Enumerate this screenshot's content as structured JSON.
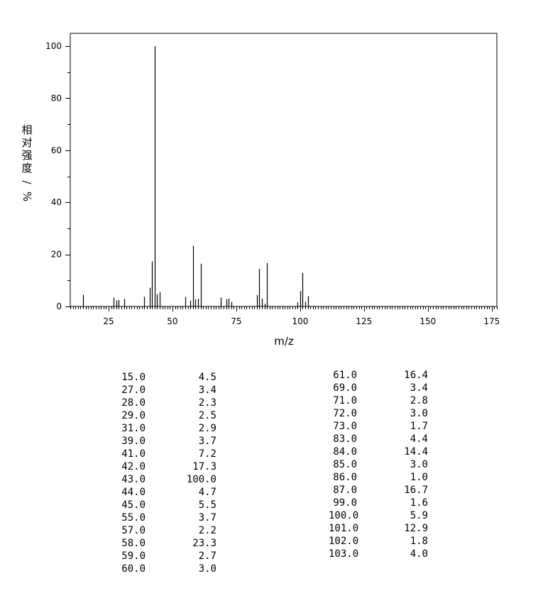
{
  "chart_data": {
    "type": "bar",
    "xlabel": "m/z",
    "ylabel": "相对强度/%",
    "xlim": [
      10,
      177
    ],
    "ylim": [
      0,
      105
    ],
    "x_ticks": [
      25,
      50,
      75,
      100,
      125,
      150,
      175
    ],
    "y_ticks": [
      0,
      20,
      40,
      60,
      80,
      100
    ],
    "peaks": [
      {
        "mz": 15.0,
        "intensity": 4.5
      },
      {
        "mz": 27.0,
        "intensity": 3.4
      },
      {
        "mz": 28.0,
        "intensity": 2.3
      },
      {
        "mz": 29.0,
        "intensity": 2.5
      },
      {
        "mz": 31.0,
        "intensity": 2.9
      },
      {
        "mz": 39.0,
        "intensity": 3.7
      },
      {
        "mz": 41.0,
        "intensity": 7.2
      },
      {
        "mz": 42.0,
        "intensity": 17.3
      },
      {
        "mz": 43.0,
        "intensity": 100.0
      },
      {
        "mz": 44.0,
        "intensity": 4.7
      },
      {
        "mz": 45.0,
        "intensity": 5.5
      },
      {
        "mz": 55.0,
        "intensity": 3.7
      },
      {
        "mz": 57.0,
        "intensity": 2.2
      },
      {
        "mz": 58.0,
        "intensity": 23.3
      },
      {
        "mz": 59.0,
        "intensity": 2.7
      },
      {
        "mz": 60.0,
        "intensity": 3.0
      },
      {
        "mz": 61.0,
        "intensity": 16.4
      },
      {
        "mz": 69.0,
        "intensity": 3.4
      },
      {
        "mz": 71.0,
        "intensity": 2.8
      },
      {
        "mz": 72.0,
        "intensity": 3.0
      },
      {
        "mz": 73.0,
        "intensity": 1.7
      },
      {
        "mz": 83.0,
        "intensity": 4.4
      },
      {
        "mz": 84.0,
        "intensity": 14.4
      },
      {
        "mz": 85.0,
        "intensity": 3.0
      },
      {
        "mz": 86.0,
        "intensity": 1.0
      },
      {
        "mz": 87.0,
        "intensity": 16.7
      },
      {
        "mz": 99.0,
        "intensity": 1.6
      },
      {
        "mz": 100.0,
        "intensity": 5.9
      },
      {
        "mz": 101.0,
        "intensity": 12.9
      },
      {
        "mz": 102.0,
        "intensity": 1.8
      },
      {
        "mz": 103.0,
        "intensity": 4.0
      }
    ]
  },
  "peak_table": {
    "left": [
      [
        "15.0",
        "4.5"
      ],
      [
        "27.0",
        "3.4"
      ],
      [
        "28.0",
        "2.3"
      ],
      [
        "29.0",
        "2.5"
      ],
      [
        "31.0",
        "2.9"
      ],
      [
        "39.0",
        "3.7"
      ],
      [
        "41.0",
        "7.2"
      ],
      [
        "42.0",
        "17.3"
      ],
      [
        "43.0",
        "100.0"
      ],
      [
        "44.0",
        "4.7"
      ],
      [
        "45.0",
        "5.5"
      ],
      [
        "55.0",
        "3.7"
      ],
      [
        "57.0",
        "2.2"
      ],
      [
        "58.0",
        "23.3"
      ],
      [
        "59.0",
        "2.7"
      ],
      [
        "60.0",
        "3.0"
      ]
    ],
    "right": [
      [
        "61.0",
        "16.4"
      ],
      [
        "69.0",
        "3.4"
      ],
      [
        "71.0",
        "2.8"
      ],
      [
        "72.0",
        "3.0"
      ],
      [
        "73.0",
        "1.7"
      ],
      [
        "83.0",
        "4.4"
      ],
      [
        "84.0",
        "14.4"
      ],
      [
        "85.0",
        "3.0"
      ],
      [
        "86.0",
        "1.0"
      ],
      [
        "87.0",
        "16.7"
      ],
      [
        "99.0",
        "1.6"
      ],
      [
        "100.0",
        "5.9"
      ],
      [
        "101.0",
        "12.9"
      ],
      [
        "102.0",
        "1.8"
      ],
      [
        "103.0",
        "4.0"
      ]
    ]
  }
}
